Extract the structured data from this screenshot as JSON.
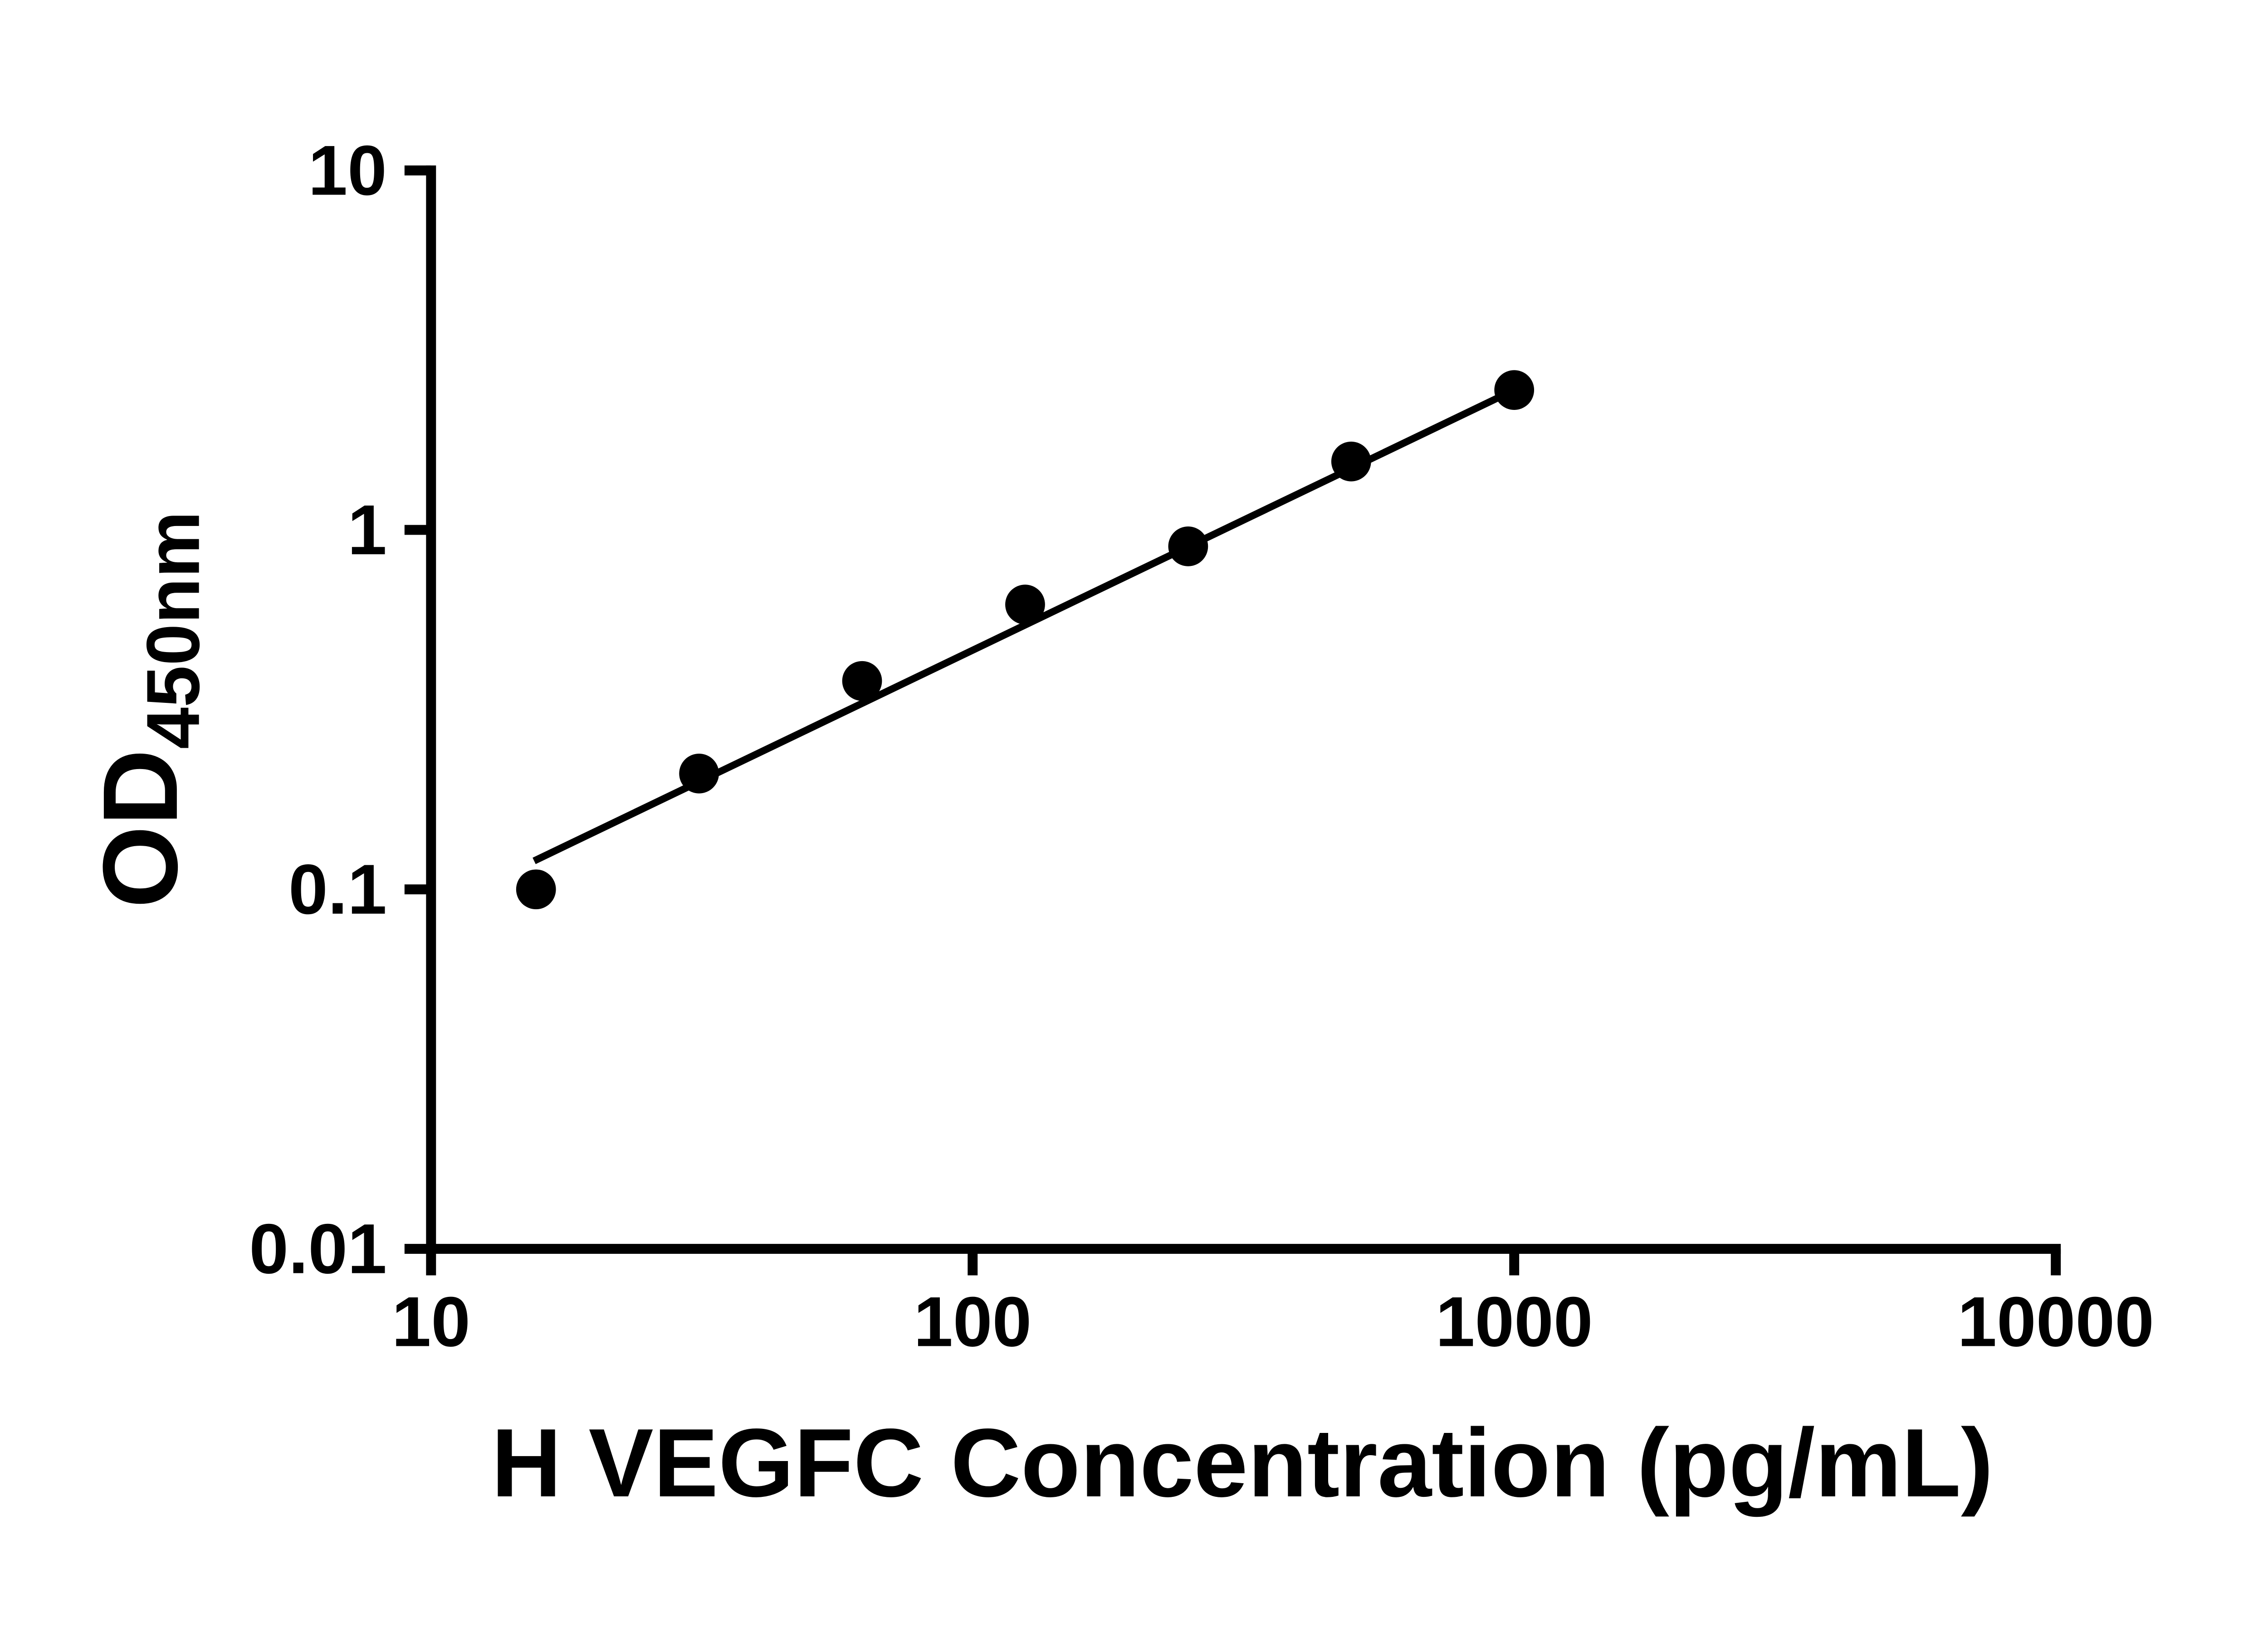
{
  "chart_data": {
    "type": "scatter",
    "title": "",
    "xlabel": "H VEGFC Concentration (pg/mL)",
    "ylabel": "OD450nm",
    "ylabel_main": "OD",
    "ylabel_sub": "450nm",
    "x_scale": "log10",
    "y_scale": "log10",
    "xlim": [
      10,
      10000
    ],
    "ylim": [
      0.01,
      10
    ],
    "x_ticks": [
      10,
      100,
      1000,
      10000
    ],
    "x_tick_labels": [
      "10",
      "100",
      "1000",
      "10000"
    ],
    "y_ticks": [
      0.01,
      0.1,
      1,
      10
    ],
    "y_tick_labels": [
      "0.01",
      "0.1",
      "1",
      "10"
    ],
    "points": [
      {
        "x": 15.625,
        "y": 0.1
      },
      {
        "x": 31.25,
        "y": 0.21
      },
      {
        "x": 62.5,
        "y": 0.38
      },
      {
        "x": 125,
        "y": 0.62
      },
      {
        "x": 250,
        "y": 0.9
      },
      {
        "x": 500,
        "y": 1.55
      },
      {
        "x": 1000,
        "y": 2.45
      }
    ],
    "trendline": {
      "x1": 15.5,
      "y1": 0.12,
      "x2": 1000,
      "y2": 2.45
    },
    "grid": false,
    "legend": false,
    "marker_color": "#000000",
    "line_color": "#000000",
    "axis_color": "#000000",
    "background_color": "#ffffff"
  }
}
